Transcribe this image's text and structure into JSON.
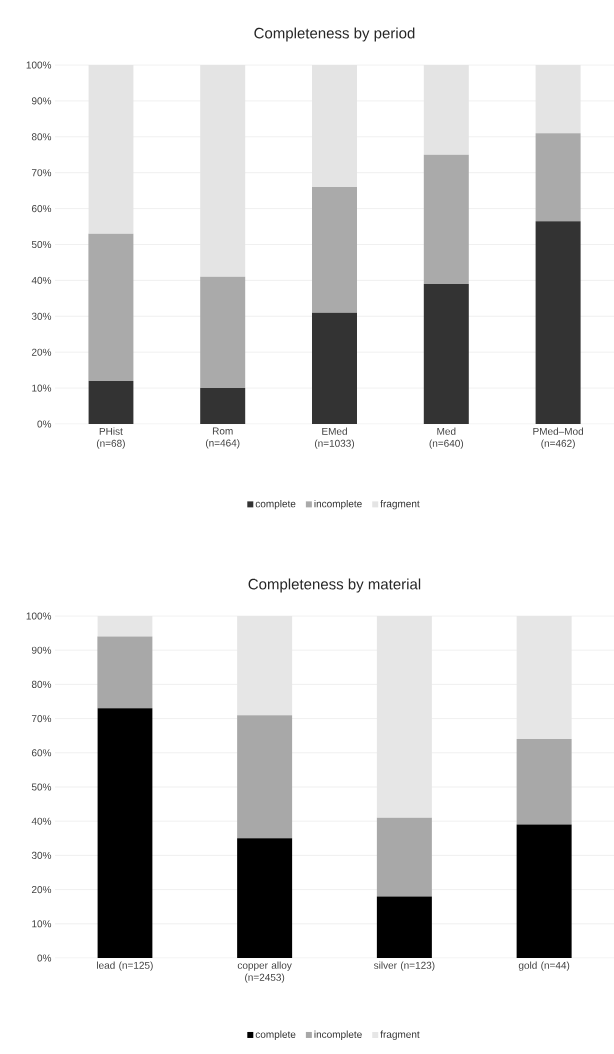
{
  "chart_data": [
    {
      "type": "bar",
      "title": "Completeness by period",
      "stacked": true,
      "categories": [
        "PHist (n=68)",
        "Rom (n=464)",
        "EMed (n=1033)",
        "Med (n=640)",
        "PMed–Mod (n=462)"
      ],
      "series": [
        {
          "name": "complete",
          "color": "#333333",
          "values": [
            12,
            10,
            31,
            39,
            56.5
          ]
        },
        {
          "name": "incomplete",
          "color": "#aaaaaa",
          "values": [
            41,
            31,
            35,
            36,
            24.5
          ]
        },
        {
          "name": "fragment",
          "color": "#e4e4e4",
          "values": [
            47,
            59,
            34,
            25,
            19
          ]
        }
      ],
      "ylim": [
        0,
        100
      ],
      "yticks": [
        {
          "value": 0,
          "label": "0%"
        },
        {
          "value": 10,
          "label": "10%"
        },
        {
          "value": 20,
          "label": "20%"
        },
        {
          "value": 30,
          "label": "30%"
        },
        {
          "value": 40,
          "label": "40%"
        },
        {
          "value": 50,
          "label": "50%"
        },
        {
          "value": 60,
          "label": "60%"
        },
        {
          "value": 70,
          "label": "70%"
        },
        {
          "value": 80,
          "label": "80%"
        },
        {
          "value": 90,
          "label": "90%"
        },
        {
          "value": 100,
          "label": "100%"
        }
      ],
      "grid": "y",
      "legend": "bottom"
    },
    {
      "type": "bar",
      "title": "Completeness by material",
      "stacked": true,
      "categories": [
        "lead (n=125)",
        "copper alloy (n=2453)",
        "silver (n=123)",
        "gold (n=44)"
      ],
      "series": [
        {
          "name": "complete",
          "color": "#000000",
          "values": [
            73,
            35,
            18,
            39
          ]
        },
        {
          "name": "incomplete",
          "color": "#a8a8a8",
          "values": [
            21,
            36,
            23,
            25
          ]
        },
        {
          "name": "fragment",
          "color": "#e6e6e6",
          "values": [
            6,
            29,
            59,
            36
          ]
        }
      ],
      "ylim": [
        0,
        100
      ],
      "yticks": [
        {
          "value": 0,
          "label": "0%"
        },
        {
          "value": 10,
          "label": "10%"
        },
        {
          "value": 20,
          "label": "20%"
        },
        {
          "value": 30,
          "label": "30%"
        },
        {
          "value": 40,
          "label": "40%"
        },
        {
          "value": 50,
          "label": "50%"
        },
        {
          "value": 60,
          "label": "60%"
        },
        {
          "value": 70,
          "label": "70%"
        },
        {
          "value": 80,
          "label": "80%"
        },
        {
          "value": 90,
          "label": "90%"
        },
        {
          "value": 100,
          "label": "100%"
        }
      ],
      "grid": "y",
      "legend": "bottom"
    }
  ]
}
